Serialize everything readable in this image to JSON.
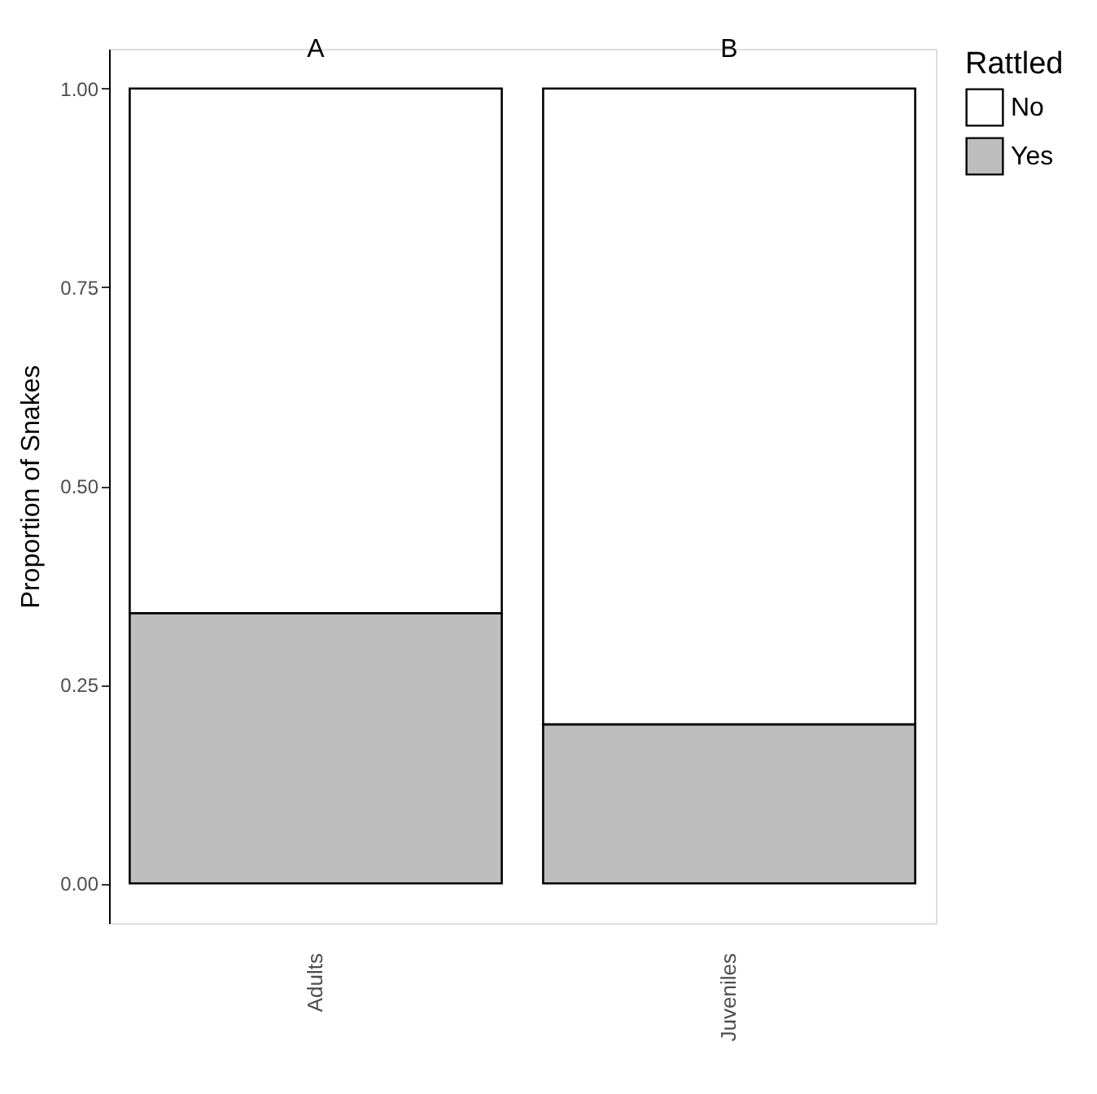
{
  "chart_data": {
    "type": "bar",
    "stacked": true,
    "categories": [
      "Adults",
      "Juveniles"
    ],
    "series": [
      {
        "name": "Yes",
        "color": "#bebebe",
        "values": [
          0.34,
          0.2
        ]
      },
      {
        "name": "No",
        "color": "#ffffff",
        "values": [
          0.66,
          0.8
        ]
      }
    ],
    "ylabel": "Proportion of Snakes",
    "legend_title": "Rattled",
    "legend": "right",
    "ylim": [
      -0.05,
      1.05
    ],
    "yticks": [
      {
        "value": 0,
        "label": "0.00"
      },
      {
        "value": 0.25,
        "label": "0.25"
      },
      {
        "value": 0.5,
        "label": "0.50"
      },
      {
        "value": 0.75,
        "label": "0.75"
      },
      {
        "value": 1,
        "label": "1.00"
      }
    ],
    "grid": false,
    "annotations": [
      "A",
      "B"
    ]
  }
}
